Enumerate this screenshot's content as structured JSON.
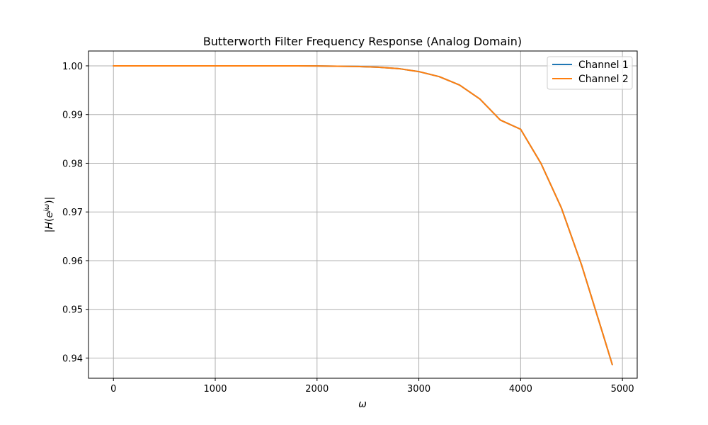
{
  "chart_data": {
    "type": "line",
    "title": "Butterworth Filter Frequency Response (Analog Domain)",
    "xlabel": "ω",
    "ylabel": "|H(e^{jω})|",
    "xlim": [
      -245,
      5145
    ],
    "ylim": [
      0.93585,
      1.00305
    ],
    "xticks": [
      0,
      1000,
      2000,
      3000,
      4000,
      5000
    ],
    "xtick_labels": [
      "0",
      "1000",
      "2000",
      "3000",
      "4000",
      "5000"
    ],
    "yticks": [
      0.94,
      0.95,
      0.96,
      0.97,
      0.98,
      0.99,
      1.0
    ],
    "ytick_labels": [
      "0.94",
      "0.95",
      "0.96",
      "0.97",
      "0.98",
      "0.99",
      "1.00"
    ],
    "grid": true,
    "legend_position": "upper-right",
    "series": [
      {
        "name": "Channel 1",
        "color": "#1f77b4",
        "x": [
          0,
          200,
          400,
          600,
          800,
          1000,
          1200,
          1400,
          1600,
          1800,
          2000,
          2200,
          2400,
          2600,
          2800,
          3000,
          3200,
          3400,
          3600,
          3800,
          4000,
          4200,
          4400,
          4600,
          4800,
          4900
        ],
        "y": [
          1.0,
          1.0,
          1.0,
          1.0,
          1.0,
          1.0,
          1.0,
          1.0,
          1.0,
          0.99999,
          0.99997,
          0.99993,
          0.99986,
          0.99972,
          0.99944,
          0.99882,
          0.99779,
          0.99606,
          0.99319,
          0.98888,
          0.98698,
          0.97996,
          0.97084,
          0.95902,
          0.9455,
          0.93867
        ]
      },
      {
        "name": "Channel 2",
        "color": "#ff7f0e",
        "x": [
          0,
          200,
          400,
          600,
          800,
          1000,
          1200,
          1400,
          1600,
          1800,
          2000,
          2200,
          2400,
          2600,
          2800,
          3000,
          3200,
          3400,
          3600,
          3800,
          4000,
          4200,
          4400,
          4600,
          4800,
          4900
        ],
        "y": [
          1.0,
          1.0,
          1.0,
          1.0,
          1.0,
          1.0,
          1.0,
          1.0,
          1.0,
          0.99999,
          0.99997,
          0.99993,
          0.99986,
          0.99972,
          0.99944,
          0.99882,
          0.99779,
          0.99606,
          0.99319,
          0.98888,
          0.98698,
          0.97996,
          0.97084,
          0.95902,
          0.9455,
          0.93867
        ]
      }
    ]
  }
}
